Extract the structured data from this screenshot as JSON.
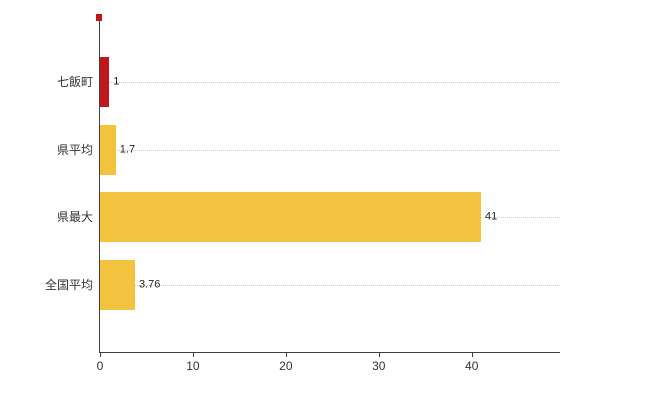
{
  "chart_data": {
    "type": "bar",
    "orientation": "horizontal",
    "title": "",
    "xlabel": "",
    "ylabel": "",
    "categories": [
      "七飯町",
      "県平均",
      "県最大",
      "全国平均"
    ],
    "values": [
      1,
      1.7,
      41,
      3.76
    ],
    "value_labels": [
      "1",
      "1.7",
      "41",
      "3.76"
    ],
    "bar_colors": [
      "#c0171c",
      "#f3c340",
      "#f3c340",
      "#f3c340"
    ],
    "highlight_color": "#c0171c",
    "default_bar_color": "#f3c340",
    "x_tick_labels": [
      "0",
      "10",
      "20",
      "30",
      "40"
    ],
    "x_tick_values": [
      0,
      10,
      20,
      30,
      40
    ],
    "xlim": [
      0,
      49.5
    ],
    "grid": "horizontal-dotted",
    "gridline_color": "#cccccc",
    "axis_color": "#404040",
    "background": "#ffffff",
    "legend": "none"
  }
}
